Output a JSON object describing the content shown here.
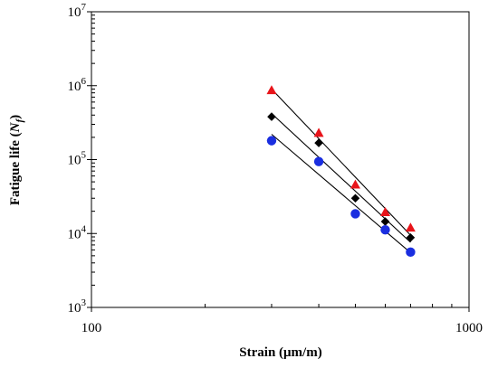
{
  "chart_data": {
    "type": "scatter",
    "xlabel": "Strain (μm/m)",
    "ylabel_main": "Fatigue life (",
    "ylabel_var": "N",
    "ylabel_sub": "f",
    "ylabel_close": ")",
    "x_scale": "log",
    "y_scale": "log",
    "xlim": [
      100,
      1000
    ],
    "ylim": [
      1000,
      10000000
    ],
    "x_ticks": [
      {
        "value": 100,
        "label": "100"
      },
      {
        "value": 1000,
        "label": "1000"
      }
    ],
    "y_ticks": [
      {
        "value": 1000,
        "base": "10",
        "exp": "3"
      },
      {
        "value": 10000,
        "base": "10",
        "exp": "4"
      },
      {
        "value": 100000,
        "base": "10",
        "exp": "5"
      },
      {
        "value": 1000000,
        "base": "10",
        "exp": "6"
      },
      {
        "value": 10000000,
        "base": "10",
        "exp": "7"
      }
    ],
    "grid": false,
    "legend": "none",
    "series": [
      {
        "marker": "triangle",
        "color": "#e8141a",
        "x": [
          300,
          400,
          500,
          600,
          700
        ],
        "y": [
          870000,
          230000,
          46000,
          19500,
          12000
        ],
        "fit": {
          "x": [
            300,
            700
          ],
          "y": [
            900000,
            9500
          ]
        }
      },
      {
        "marker": "diamond",
        "color": "#000000",
        "x": [
          300,
          400,
          500,
          600,
          700
        ],
        "y": [
          380000,
          168000,
          30000,
          14500,
          8800
        ],
        "fit": {
          "x": [
            300,
            700
          ],
          "y": [
            420000,
            7600
          ]
        }
      },
      {
        "marker": "circle",
        "color": "#1a2ee0",
        "x": [
          300,
          400,
          500,
          600,
          700
        ],
        "y": [
          180000,
          94000,
          18500,
          11200,
          5600
        ],
        "fit": {
          "x": [
            300,
            700
          ],
          "y": [
            220000,
            5500
          ]
        }
      }
    ]
  }
}
